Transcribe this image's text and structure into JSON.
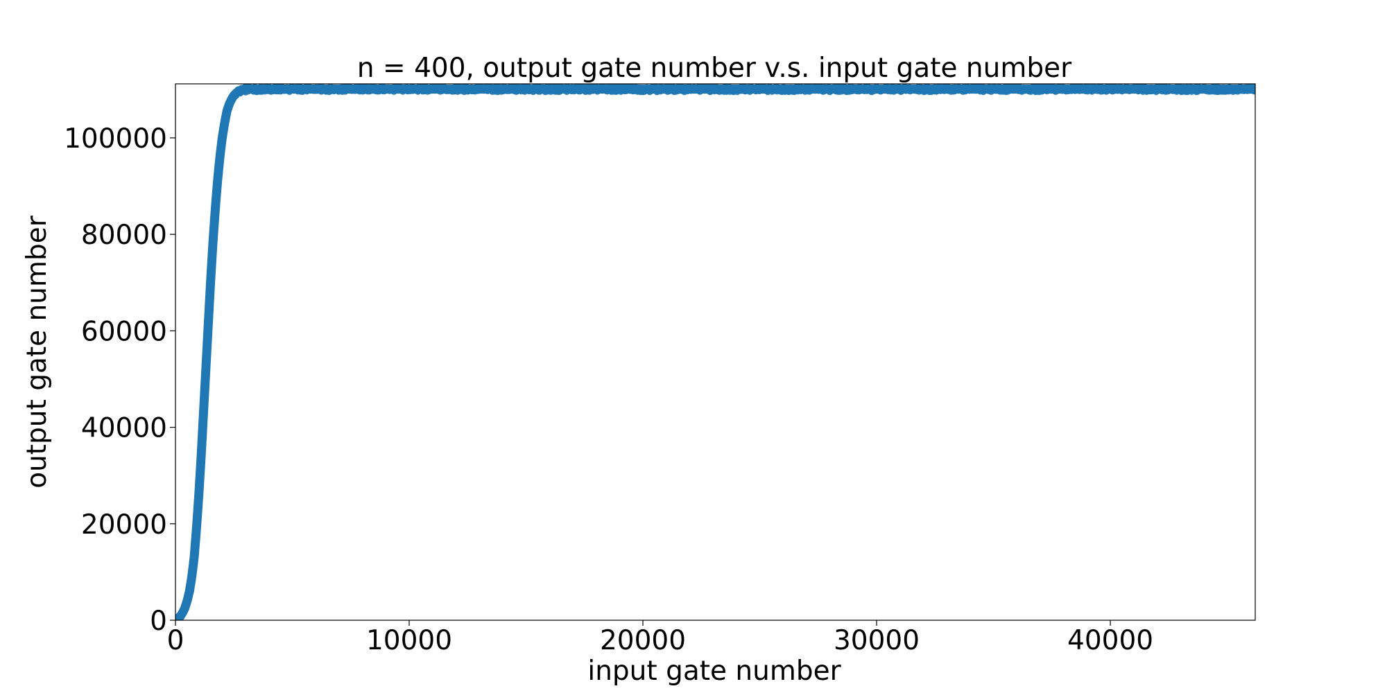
{
  "chart_data": {
    "type": "scatter",
    "title": "n = 400, output gate number v.s. input gate number",
    "xlabel": "input gate number",
    "ylabel": "output gate number",
    "xlim": [
      0,
      46200
    ],
    "ylim": [
      0,
      111200
    ],
    "xticks": [
      0,
      10000,
      20000,
      30000,
      40000
    ],
    "yticks": [
      0,
      20000,
      40000,
      60000,
      80000,
      100000
    ],
    "xtick_labels": [
      "0",
      "10000",
      "20000",
      "30000",
      "40000"
    ],
    "ytick_labels": [
      "0",
      "20000",
      "40000",
      "60000",
      "80000",
      "100000"
    ],
    "grid": false,
    "legend": "none",
    "marker_color": "#1f77b4",
    "series": [
      {
        "x": [
          0,
          100,
          200,
          300,
          400,
          500,
          600,
          700,
          800,
          900,
          1000,
          1100,
          1200,
          1300,
          1400,
          1500,
          1600,
          1700,
          1800,
          1900,
          2000,
          2100,
          2200,
          2300,
          2400,
          2500,
          2600,
          2700,
          2800,
          2900,
          3000,
          3200,
          3400,
          3600,
          3800,
          4000,
          4500,
          5000,
          6000,
          7000,
          8000,
          9000,
          10000,
          12000,
          14000,
          16000,
          18000,
          20000,
          22000,
          24000,
          26000,
          28000,
          30000,
          32000,
          34000,
          36000,
          38000,
          40000,
          42000,
          44000,
          46200
        ],
        "y": [
          0,
          300,
          800,
          1500,
          2500,
          4000,
          6000,
          9000,
          13000,
          19000,
          26000,
          34000,
          43000,
          52000,
          61000,
          70000,
          78000,
          85000,
          91000,
          96000,
          100000,
          103000,
          105500,
          107000,
          108000,
          108800,
          109300,
          109600,
          109800,
          109900,
          110000,
          110100,
          110100,
          110100,
          110100,
          110100,
          110100,
          110100,
          110100,
          110100,
          110100,
          110100,
          110100,
          110100,
          110100,
          110100,
          110100,
          110100,
          110100,
          110100,
          110100,
          110100,
          110100,
          110100,
          110100,
          110100,
          110100,
          110100,
          110100,
          110100,
          110100
        ]
      }
    ]
  }
}
